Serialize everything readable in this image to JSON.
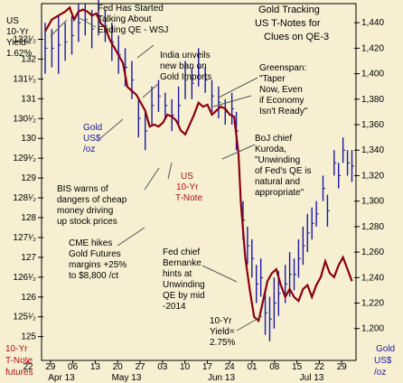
{
  "chart_data": {
    "type": "line",
    "title": [
      "Gold Tracking",
      "US T-Notes for",
      "Clues on QE-3"
    ],
    "left_axis": {
      "label": [
        "10-Yr",
        "T-Note",
        "futures"
      ],
      "ticks": [
        "132¹⁄₂",
        "132",
        "131¹⁄₂",
        "131",
        "130¹⁄₂",
        "130",
        "129¹⁄₂",
        "129",
        "128¹⁄₂",
        "128",
        "127¹⁄₂",
        "127",
        "126¹⁄₂",
        "126",
        "125¹⁄₂",
        "125"
      ],
      "values": [
        132.5,
        132,
        131.5,
        131,
        130.5,
        130,
        129.5,
        129,
        128.5,
        128,
        127.5,
        127,
        126.5,
        126,
        125.5,
        125
      ],
      "ylim": [
        124.4,
        133.4
      ]
    },
    "right_axis": {
      "label": [
        "Gold",
        "US$",
        "/oz"
      ],
      "ticks": [
        "1,440",
        "1,420",
        "1,400",
        "1,380",
        "1,360",
        "1,340",
        "1,320",
        "1,300",
        "1,280",
        "1,260",
        "1,240",
        "1,220",
        "1,200"
      ],
      "values": [
        1440,
        1420,
        1400,
        1380,
        1360,
        1340,
        1320,
        1300,
        1280,
        1260,
        1240,
        1220,
        1200
      ],
      "ylim": [
        1175,
        1455
      ]
    },
    "x_axis": {
      "ticks": [
        "22",
        "29",
        "06",
        "13",
        "20",
        "27",
        "03",
        "10",
        "17",
        "24",
        "01",
        "08",
        "15",
        "22",
        "29"
      ],
      "months": [
        "Apr 13",
        "May 13",
        "Jun 13",
        "Jul 13"
      ]
    },
    "series": [
      {
        "name": "US 10-Yr T-Note",
        "color": "#8a0010",
        "x": [
          0,
          0.3,
          0.6,
          0.9,
          1.1,
          1.3,
          1.5,
          1.7,
          1.9,
          2.1,
          2.3,
          2.5,
          2.7,
          2.9,
          3.1,
          3.3,
          3.5,
          3.7,
          3.9,
          4.1,
          4.3,
          4.5,
          4.7,
          4.9,
          5.1,
          5.3,
          5.5,
          5.7,
          5.9,
          6.1,
          6.3,
          6.5,
          6.7,
          6.9,
          7.1,
          7.3,
          7.5,
          7.7,
          7.9,
          8.1,
          8.3,
          8.5,
          8.7,
          8.8,
          9.0,
          9.2,
          9.4,
          9.6,
          9.8,
          10.0,
          10.2,
          10.4,
          10.6,
          10.8,
          11.0,
          11.2,
          11.4,
          11.6,
          11.8,
          12.0,
          12.2,
          12.4,
          12.6,
          12.8,
          13.0,
          13.2,
          13.4,
          13.6,
          13.8
        ],
        "y": [
          132.7,
          133.0,
          133.1,
          133.2,
          133.3,
          133.0,
          133.2,
          133.25,
          133.2,
          133.1,
          133.15,
          132.9,
          132.8,
          132.5,
          132.3,
          132.1,
          131.9,
          131.3,
          131.2,
          131.1,
          130.9,
          130.7,
          130.3,
          130.35,
          130.3,
          130.4,
          130.6,
          130.55,
          130.45,
          130.2,
          130.1,
          130.35,
          130.6,
          130.9,
          130.8,
          130.85,
          130.6,
          130.7,
          130.8,
          130.75,
          130.6,
          130.55,
          129.6,
          128.4,
          127.0,
          126.2,
          125.5,
          125.4,
          125.9,
          126.4,
          126.6,
          126.7,
          126.3,
          126.0,
          126.2,
          126.0,
          125.9,
          126.2,
          126.3,
          126.0,
          126.3,
          126.5,
          126.9,
          126.6,
          126.5,
          126.8,
          127.0,
          126.7,
          126.4
        ]
      },
      {
        "name": "Gold US$/oz",
        "color": "#1a1aa0",
        "bars": [
          [
            0.0,
            1400,
            1440
          ],
          [
            0.3,
            1405,
            1435
          ],
          [
            0.6,
            1400,
            1445
          ],
          [
            0.9,
            1410,
            1440
          ],
          [
            1.2,
            1415,
            1445
          ],
          [
            1.5,
            1425,
            1455
          ],
          [
            1.8,
            1430,
            1455
          ],
          [
            2.1,
            1420,
            1450
          ],
          [
            2.4,
            1430,
            1460
          ],
          [
            2.7,
            1425,
            1450
          ],
          [
            3.0,
            1410,
            1440
          ],
          [
            3.3,
            1400,
            1430
          ],
          [
            3.6,
            1390,
            1420
          ],
          [
            3.9,
            1380,
            1410
          ],
          [
            4.2,
            1350,
            1380
          ],
          [
            4.5,
            1340,
            1370
          ],
          [
            4.8,
            1360,
            1390
          ],
          [
            5.1,
            1370,
            1395
          ],
          [
            5.4,
            1365,
            1385
          ],
          [
            5.7,
            1355,
            1380
          ],
          [
            6.0,
            1360,
            1390
          ],
          [
            6.3,
            1380,
            1410
          ],
          [
            6.6,
            1380,
            1405
          ],
          [
            6.9,
            1390,
            1420
          ],
          [
            7.2,
            1385,
            1405
          ],
          [
            7.5,
            1370,
            1395
          ],
          [
            7.8,
            1365,
            1390
          ],
          [
            8.1,
            1360,
            1380
          ],
          [
            8.4,
            1360,
            1385
          ],
          [
            8.6,
            1340,
            1370
          ],
          [
            8.9,
            1270,
            1300
          ],
          [
            9.1,
            1250,
            1280
          ],
          [
            9.3,
            1240,
            1270
          ],
          [
            9.5,
            1220,
            1250
          ],
          [
            9.7,
            1225,
            1255
          ],
          [
            9.9,
            1195,
            1230
          ],
          [
            10.1,
            1190,
            1225
          ],
          [
            10.3,
            1200,
            1240
          ],
          [
            10.5,
            1210,
            1245
          ],
          [
            10.8,
            1220,
            1250
          ],
          [
            11.0,
            1225,
            1260
          ],
          [
            11.2,
            1230,
            1255
          ],
          [
            11.4,
            1240,
            1270
          ],
          [
            11.6,
            1250,
            1280
          ],
          [
            11.8,
            1260,
            1290
          ],
          [
            12.0,
            1270,
            1295
          ],
          [
            12.2,
            1280,
            1300
          ],
          [
            12.5,
            1300,
            1320
          ],
          [
            12.7,
            1280,
            1305
          ],
          [
            13.0,
            1320,
            1340
          ],
          [
            13.2,
            1310,
            1330
          ],
          [
            13.4,
            1330,
            1350
          ],
          [
            13.6,
            1320,
            1340
          ],
          [
            13.8,
            1315,
            1340
          ]
        ]
      }
    ],
    "annotations": [
      [
        "US",
        "10-Yr",
        "Yield=",
        "1.62%"
      ],
      [
        "Fed Has Started",
        "Talking About",
        "Ending QE - WSJ"
      ],
      [
        "India unveils",
        "new ban on",
        "Gold Imports"
      ],
      [
        "Greenspan:",
        "\"Taper",
        "Now, Even",
        "if Economy",
        "Isn't Ready\""
      ],
      [
        "Gold",
        "US$",
        "/oz"
      ],
      [
        "BoJ chief",
        "Kuroda,",
        "\"Unwinding",
        "of Fed's QE is",
        "natural and",
        "appropriate\""
      ],
      [
        "BIS warns of",
        "dangers of cheap",
        "money driving",
        "up stock prices"
      ],
      [
        "US",
        "10-Yr",
        "T-Note"
      ],
      [
        "CME hikes",
        "Gold Futures",
        "margins +25%",
        "to $8,800 /ct"
      ],
      [
        "Fed chief",
        "Bernanke",
        "hints at",
        "Unwinding",
        "QE by mid",
        "-2014"
      ],
      [
        "10-Yr",
        "Yield=",
        "2.75%"
      ]
    ]
  }
}
